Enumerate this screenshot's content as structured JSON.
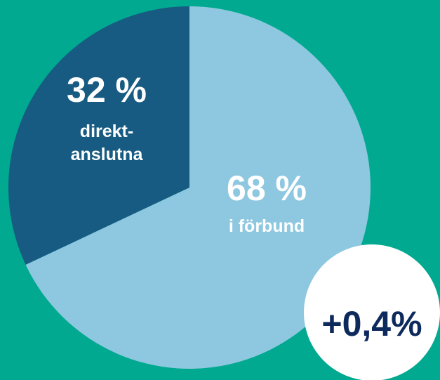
{
  "chart_data": {
    "type": "pie",
    "categories": [
      "i förbund",
      "direkt-\nanslutna"
    ],
    "values": [
      68,
      32
    ],
    "value_labels": [
      "68 %",
      "32 %"
    ],
    "colors": [
      "#8ec8e0",
      "#175b82"
    ],
    "badge": "+0,4%"
  }
}
